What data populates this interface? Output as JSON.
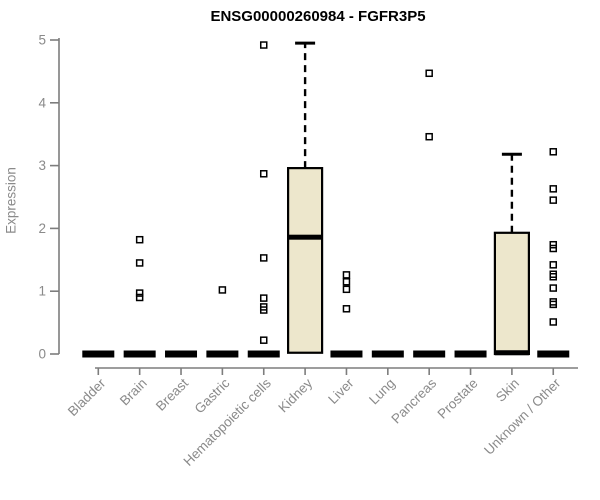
{
  "chart_data": {
    "type": "boxplot",
    "title": "ENSG00000260984 - FGFR3P5",
    "subtitle": "",
    "xlabel": "",
    "ylabel": "Expression",
    "ylim": [
      0,
      5
    ],
    "yticks": [
      "0",
      "1",
      "2",
      "3",
      "4",
      "5"
    ],
    "grid": false,
    "legend_position": "none",
    "categories": [
      "Bladder",
      "Brain",
      "Breast",
      "Gastric",
      "Hematopoietic cells",
      "Kidney",
      "Liver",
      "Lung",
      "Pancreas",
      "Prostate",
      "Skin",
      "Unknown / Other"
    ],
    "series": [
      {
        "category": "Bladder",
        "q1": 0,
        "median": 0,
        "q3": 0,
        "whisker_low": 0,
        "whisker_high": 0,
        "outliers": []
      },
      {
        "category": "Brain",
        "q1": 0,
        "median": 0,
        "q3": 0,
        "whisker_low": 0,
        "whisker_high": 0,
        "outliers": [
          1.82,
          1.45,
          0.97,
          0.9
        ]
      },
      {
        "category": "Breast",
        "q1": 0,
        "median": 0,
        "q3": 0,
        "whisker_low": 0,
        "whisker_high": 0,
        "outliers": []
      },
      {
        "category": "Gastric",
        "q1": 0,
        "median": 0,
        "q3": 0,
        "whisker_low": 0,
        "whisker_high": 0,
        "outliers": [
          1.02
        ]
      },
      {
        "category": "Hematopoietic cells",
        "q1": 0,
        "median": 0,
        "q3": 0,
        "whisker_low": 0,
        "whisker_high": 0,
        "outliers": [
          4.92,
          2.87,
          1.53,
          0.89,
          0.75,
          0.7,
          0.22
        ]
      },
      {
        "category": "Kidney",
        "q1": 0.02,
        "median": 1.86,
        "q3": 2.96,
        "whisker_low": 0.02,
        "whisker_high": 4.95,
        "outliers": []
      },
      {
        "category": "Liver",
        "q1": 0,
        "median": 0,
        "q3": 0,
        "whisker_low": 0,
        "whisker_high": 0,
        "outliers": [
          1.26,
          1.15,
          1.03,
          0.72
        ]
      },
      {
        "category": "Lung",
        "q1": 0,
        "median": 0,
        "q3": 0,
        "whisker_low": 0,
        "whisker_high": 0,
        "outliers": []
      },
      {
        "category": "Pancreas",
        "q1": 0,
        "median": 0,
        "q3": 0,
        "whisker_low": 0,
        "whisker_high": 0,
        "outliers": [
          4.47,
          3.46
        ]
      },
      {
        "category": "Prostate",
        "q1": 0,
        "median": 0,
        "q3": 0,
        "whisker_low": 0,
        "whisker_high": 0,
        "outliers": []
      },
      {
        "category": "Skin",
        "q1": 0,
        "median": 0.02,
        "q3": 1.93,
        "whisker_low": 0,
        "whisker_high": 3.18,
        "outliers": []
      },
      {
        "category": "Unknown / Other",
        "q1": 0,
        "median": 0,
        "q3": 0,
        "whisker_low": 0,
        "whisker_high": 0,
        "outliers": [
          3.22,
          2.63,
          2.45,
          1.74,
          1.68,
          1.42,
          1.27,
          1.23,
          1.05,
          0.83,
          0.79,
          0.51
        ]
      }
    ],
    "colors": {
      "box_fill": "#ede7cc",
      "box_stroke": "#000000",
      "median": "#000000",
      "whisker": "#000000",
      "outlier_stroke": "#000000",
      "axis_line": "#7d7d7d",
      "tick_label": "#8a8a8a",
      "title": "#000000",
      "background": "#ffffff"
    }
  }
}
